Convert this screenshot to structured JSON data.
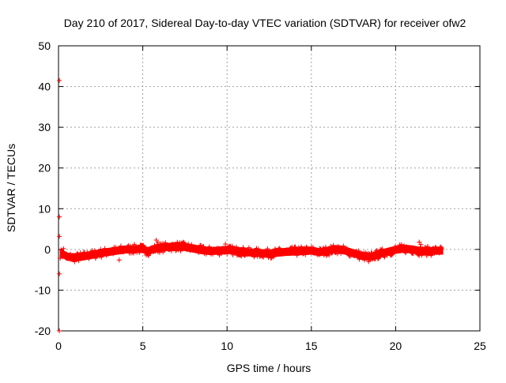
{
  "chart_data": {
    "type": "scatter",
    "title": "Day 210 of 2017, Sidereal Day-to-day VTEC variation (SDTVAR) for receiver ofw2",
    "xlabel": "GPS time / hours",
    "ylabel": "SDTVAR / TECUs",
    "xlim": [
      0,
      25
    ],
    "ylim": [
      -20,
      50
    ],
    "xticks": [
      "0",
      "5",
      "10",
      "15",
      "20",
      "25"
    ],
    "yticks": [
      "-20",
      "-10",
      "0",
      "10",
      "20",
      "30",
      "40",
      "50"
    ],
    "grid": true,
    "series": [
      {
        "name": "SDTVAR",
        "color": "#ff0000",
        "marker": "plus",
        "trend": {
          "x": [
            0.1,
            0.3,
            0.5,
            1.0,
            1.5,
            2.0,
            2.5,
            3.0,
            3.5,
            4.0,
            4.5,
            5.0,
            5.3,
            5.6,
            6.0,
            6.5,
            7.0,
            7.5,
            8.0,
            8.5,
            9.0,
            9.5,
            10.0,
            10.5,
            11.0,
            11.5,
            12.0,
            12.5,
            13.0,
            13.5,
            14.0,
            14.5,
            15.0,
            15.5,
            16.0,
            16.5,
            17.0,
            17.5,
            18.0,
            18.5,
            19.0,
            19.5,
            20.0,
            20.5,
            21.0,
            21.5,
            22.0,
            22.5,
            22.8
          ],
          "y": [
            -1.0,
            -1.2,
            -1.8,
            -2.0,
            -1.7,
            -1.3,
            -0.9,
            -0.6,
            -0.3,
            0.0,
            0.1,
            0.1,
            -0.4,
            0.0,
            0.4,
            0.6,
            0.8,
            0.6,
            0.2,
            -0.2,
            -0.4,
            -0.3,
            -0.1,
            -0.3,
            -0.6,
            -0.8,
            -0.9,
            -1.0,
            -0.8,
            -0.6,
            -0.5,
            -0.4,
            -0.3,
            -0.7,
            -0.3,
            0.1,
            -0.3,
            -0.9,
            -1.6,
            -1.9,
            -1.2,
            -0.6,
            -0.1,
            0.2,
            0.0,
            -0.4,
            -0.4,
            -0.3,
            -0.3
          ],
          "band": 0.9
        },
        "outliers": [
          {
            "x": 0.05,
            "y": 41.5
          },
          {
            "x": 0.05,
            "y": 8.0
          },
          {
            "x": 0.05,
            "y": 3.2
          },
          {
            "x": 0.05,
            "y": -6.0
          },
          {
            "x": 0.05,
            "y": -20.0
          },
          {
            "x": 0.3,
            "y": 0.2
          },
          {
            "x": 0.4,
            "y": -1.8
          },
          {
            "x": 5.8,
            "y": 2.3
          },
          {
            "x": 5.9,
            "y": 1.8
          },
          {
            "x": 9.9,
            "y": 1.3
          },
          {
            "x": 12.0,
            "y": -1.5
          },
          {
            "x": 21.4,
            "y": 1.8
          },
          {
            "x": 21.5,
            "y": 1.2
          },
          {
            "x": 18.4,
            "y": -3.0
          },
          {
            "x": 3.6,
            "y": -2.6
          }
        ]
      }
    ]
  }
}
